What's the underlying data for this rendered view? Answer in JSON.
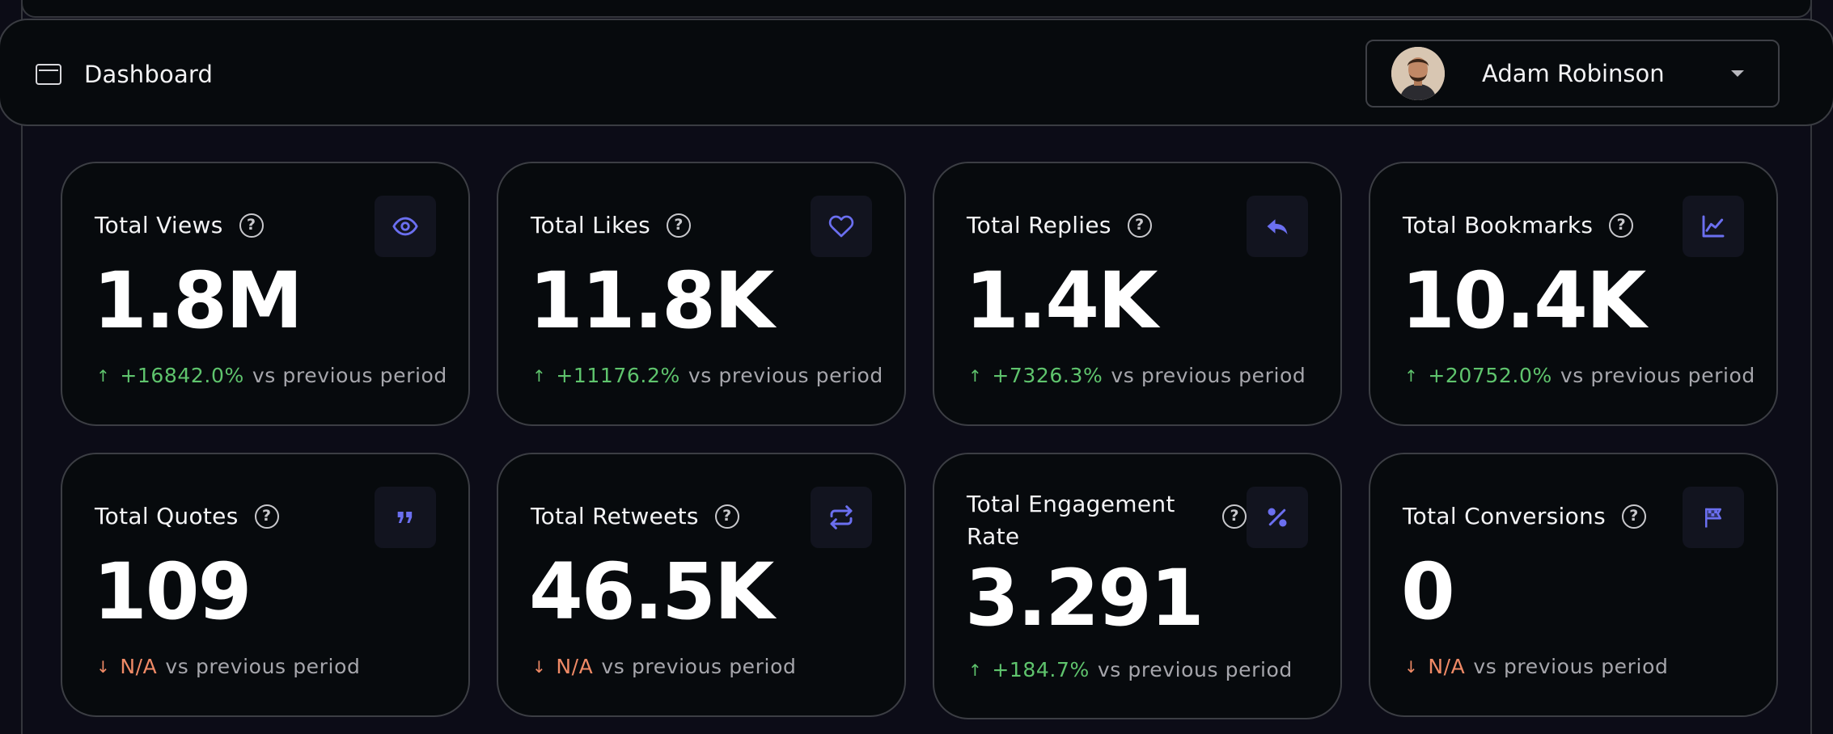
{
  "header": {
    "title": "Dashboard",
    "user": {
      "name": "Adam Robinson"
    }
  },
  "colors": {
    "accent": "#6b6ff0",
    "positive": "#5fc46d",
    "negative": "#f08a66"
  },
  "comparison_label": "vs previous period",
  "cards": [
    {
      "title": "Total Views",
      "icon": "eye-icon",
      "value": "1.8M",
      "direction": "up",
      "change": "+16842.0%"
    },
    {
      "title": "Total Likes",
      "icon": "heart-icon",
      "value": "11.8K",
      "direction": "up",
      "change": "+11176.2%"
    },
    {
      "title": "Total Replies",
      "icon": "reply-icon",
      "value": "1.4K",
      "direction": "up",
      "change": "+7326.3%"
    },
    {
      "title": "Total Bookmarks",
      "icon": "line-chart-icon",
      "value": "10.4K",
      "direction": "up",
      "change": "+20752.0%"
    },
    {
      "title": "Total Quotes",
      "icon": "quote-icon",
      "value": "109",
      "direction": "down",
      "change": "N/A"
    },
    {
      "title": "Total Retweets",
      "icon": "retweet-icon",
      "value": "46.5K",
      "direction": "down",
      "change": "N/A"
    },
    {
      "title": "Total Engagement Rate",
      "icon": "percent-icon",
      "value": "3.291",
      "direction": "up",
      "change": "+184.7%"
    },
    {
      "title": "Total Conversions",
      "icon": "flag-icon",
      "value": "0",
      "direction": "down",
      "change": "N/A"
    }
  ]
}
